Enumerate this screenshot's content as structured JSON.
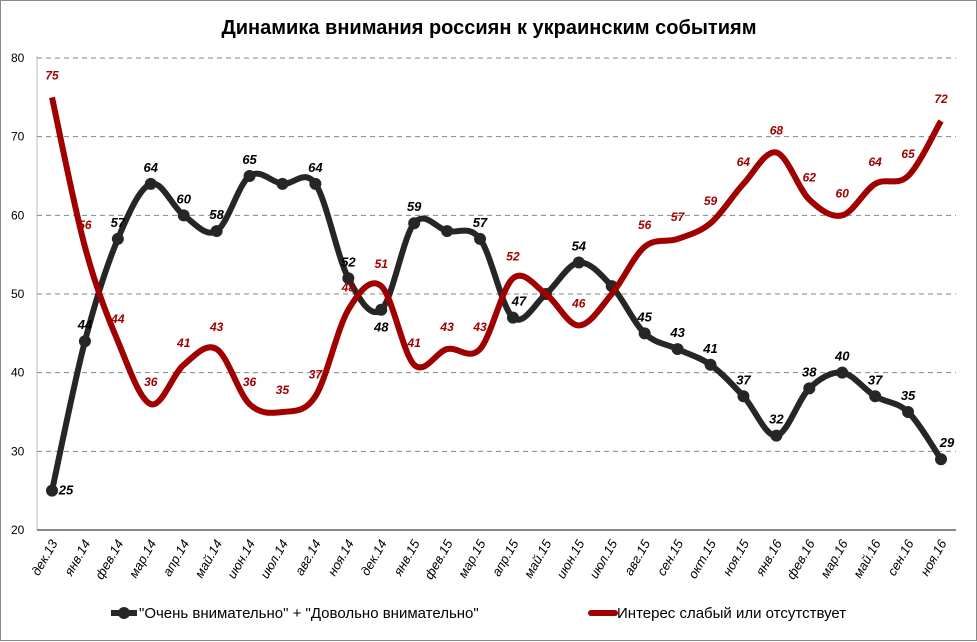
{
  "chart_data": {
    "type": "line",
    "title": "Динамика внимания россиян к украинским событиям",
    "xlabel": "",
    "ylabel": "",
    "ylim": [
      20,
      80
    ],
    "yticks": [
      20,
      30,
      40,
      50,
      60,
      70,
      80
    ],
    "grid": "horizontal dashed",
    "legend_position": "bottom",
    "categories": [
      "дек.13",
      "янв.14",
      "фев.14",
      "мар.14",
      "апр.14",
      "май.14",
      "июн.14",
      "июл.14",
      "авг.14",
      "ноя.14",
      "дек.14",
      "янв.15",
      "фев.15",
      "мар.15",
      "апр.15",
      "май.15",
      "июн.15",
      "июл.15",
      "авг.15",
      "сен.15",
      "окт.15",
      "ноя.15",
      "янв.16",
      "фев.16",
      "мар.16",
      "май.16",
      "сен.16",
      "ноя.16"
    ],
    "series": [
      {
        "name": "\"Очень внимательно\" + \"Довольно внимательно\"",
        "color": "#262626",
        "values": [
          25,
          44,
          57,
          64,
          60,
          58,
          65,
          64,
          64,
          52,
          48,
          59,
          58,
          57,
          47,
          50,
          54,
          51,
          45,
          43,
          41,
          37,
          32,
          38,
          40,
          37,
          35,
          29
        ],
        "labels": [
          "25",
          "44",
          "57",
          "64",
          "60",
          "58",
          "65",
          null,
          "64",
          "52",
          "48",
          "59",
          null,
          "57",
          "47",
          null,
          "54",
          null,
          "45",
          "43",
          "41",
          "37",
          "32",
          "38",
          "40",
          "37",
          "35",
          "29"
        ]
      },
      {
        "name": "Интерес слабый или отсутствует",
        "color": "#a00000",
        "values": [
          75,
          56,
          44,
          36,
          41,
          43,
          36,
          35,
          37,
          48,
          51,
          41,
          43,
          43,
          52,
          50,
          46,
          50,
          56,
          57,
          59,
          64,
          68,
          62,
          60,
          64,
          65,
          72
        ],
        "labels": [
          "75",
          "56",
          "44",
          "36",
          "41",
          "43",
          "36",
          "35",
          "37",
          "48",
          "51",
          "41",
          "43",
          "43",
          "52",
          null,
          "46",
          null,
          "56",
          "57",
          "59",
          "64",
          "68",
          "62",
          "60",
          "64",
          "65",
          "72"
        ]
      }
    ]
  }
}
